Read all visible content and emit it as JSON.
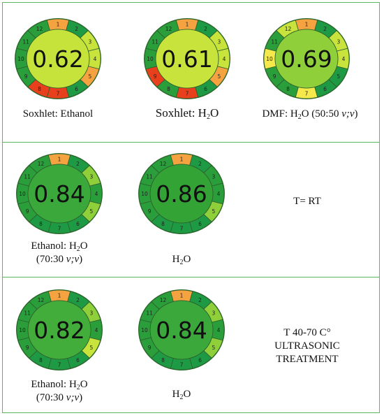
{
  "colors": {
    "frame": "#5cb85c",
    "score_1": "#d73027",
    "score_2": "#f46d43",
    "score_3": "#fdae61",
    "score_4": "#fee08b",
    "score_5": "#d9ef8b",
    "score_6": "#a6d96a",
    "score_7": "#66bd63",
    "score_8": "#1a9850",
    "score_9": "#1e8c3a"
  },
  "panels": [
    {
      "gauges": [
        {
          "score": "0.62",
          "center_color": "#c5e33a",
          "segments": [
            {
              "n": "1",
              "color": "#f4a340"
            },
            {
              "n": "2",
              "color": "#1f9a44"
            },
            {
              "n": "3",
              "color": "#c8e33c"
            },
            {
              "n": "4",
              "color": "#c8e33c"
            },
            {
              "n": "5",
              "color": "#f4a340"
            },
            {
              "n": "6",
              "color": "#1f9a44"
            },
            {
              "n": "7",
              "color": "#e8401c"
            },
            {
              "n": "8",
              "color": "#e8401c"
            },
            {
              "n": "9",
              "color": "#2a9e3a"
            },
            {
              "n": "10",
              "color": "#2a9e3a"
            },
            {
              "n": "11",
              "color": "#2a9e3a"
            },
            {
              "n": "12",
              "color": "#2a9e3a"
            }
          ],
          "caption_main": "Soxhlet: Ethanol",
          "caption_sub": "",
          "caption_tail": "",
          "caption_line2": "",
          "caption_line2_italic": "",
          "caption_line2_tail": ""
        },
        {
          "score": "0.61",
          "center_color": "#c8e33c",
          "segments": [
            {
              "n": "1",
              "color": "#f4a340"
            },
            {
              "n": "2",
              "color": "#1f9a44"
            },
            {
              "n": "3",
              "color": "#c8e33c"
            },
            {
              "n": "4",
              "color": "#c8e33c"
            },
            {
              "n": "5",
              "color": "#f4a340"
            },
            {
              "n": "6",
              "color": "#1f9a44"
            },
            {
              "n": "7",
              "color": "#e8401c"
            },
            {
              "n": "8",
              "color": "#2a9e3a"
            },
            {
              "n": "9",
              "color": "#e8401c"
            },
            {
              "n": "10",
              "color": "#2a9e3a"
            },
            {
              "n": "11",
              "color": "#2a9e3a"
            },
            {
              "n": "12",
              "color": "#2a9e3a"
            }
          ],
          "caption_main": "Soxhlet: H",
          "caption_sub": "2",
          "caption_tail": "O",
          "caption_line2": "",
          "caption_line2_italic": "",
          "caption_line2_tail": ""
        },
        {
          "score": "0.69",
          "center_color": "#8fcf3a",
          "segments": [
            {
              "n": "1",
              "color": "#f4a340"
            },
            {
              "n": "2",
              "color": "#1f9a44"
            },
            {
              "n": "3",
              "color": "#c8e33c"
            },
            {
              "n": "4",
              "color": "#c8e33c"
            },
            {
              "n": "5",
              "color": "#1f9a44"
            },
            {
              "n": "6",
              "color": "#1f9a44"
            },
            {
              "n": "7",
              "color": "#f5e84a"
            },
            {
              "n": "8",
              "color": "#2a9e3a"
            },
            {
              "n": "9",
              "color": "#2a9e3a"
            },
            {
              "n": "10",
              "color": "#f5e84a"
            },
            {
              "n": "11",
              "color": "#2a9e3a"
            },
            {
              "n": "12",
              "color": "#c8e33c"
            }
          ],
          "caption_main": "DMF: H",
          "caption_sub": "2",
          "caption_tail": "O (50:50 ",
          "caption_italic": "v;v",
          "caption_end": ")",
          "caption_line2": "",
          "caption_line2_italic": "",
          "caption_line2_tail": ""
        }
      ],
      "note_lines": []
    },
    {
      "gauges": [
        {
          "score": "0.84",
          "center_color": "#3aa83a",
          "segments": [
            {
              "n": "1",
              "color": "#f4a340"
            },
            {
              "n": "2",
              "color": "#1f9a44"
            },
            {
              "n": "3",
              "color": "#8fcf3a"
            },
            {
              "n": "4",
              "color": "#2a9e3a"
            },
            {
              "n": "5",
              "color": "#8fcf3a"
            },
            {
              "n": "6",
              "color": "#1f9a44"
            },
            {
              "n": "7",
              "color": "#1f9a44"
            },
            {
              "n": "8",
              "color": "#1f9a44"
            },
            {
              "n": "9",
              "color": "#2a9e3a"
            },
            {
              "n": "10",
              "color": "#2a9e3a"
            },
            {
              "n": "11",
              "color": "#2a9e3a"
            },
            {
              "n": "12",
              "color": "#2a9e3a"
            }
          ],
          "caption_main": "Ethanol: H",
          "caption_sub": "2",
          "caption_tail": "O",
          "caption_line2": "(70:30 ",
          "caption_line2_italic": "v;v",
          "caption_line2_tail": ")"
        },
        {
          "score": "0.86",
          "center_color": "#34a336",
          "segments": [
            {
              "n": "1",
              "color": "#f4a340"
            },
            {
              "n": "2",
              "color": "#1f9a44"
            },
            {
              "n": "3",
              "color": "#2a9e3a"
            },
            {
              "n": "4",
              "color": "#2a9e3a"
            },
            {
              "n": "5",
              "color": "#8fcf3a"
            },
            {
              "n": "6",
              "color": "#1f9a44"
            },
            {
              "n": "7",
              "color": "#1f9a44"
            },
            {
              "n": "8",
              "color": "#1f9a44"
            },
            {
              "n": "9",
              "color": "#2a9e3a"
            },
            {
              "n": "10",
              "color": "#2a9e3a"
            },
            {
              "n": "11",
              "color": "#2a9e3a"
            },
            {
              "n": "12",
              "color": "#2a9e3a"
            }
          ],
          "caption_main": "H",
          "caption_sub": "2",
          "caption_tail": "O",
          "caption_line2": "",
          "caption_line2_italic": "",
          "caption_line2_tail": ""
        }
      ],
      "note_lines": [
        "T= RT"
      ]
    },
    {
      "gauges": [
        {
          "score": "0.82",
          "center_color": "#42ad3a",
          "segments": [
            {
              "n": "1",
              "color": "#f4a340"
            },
            {
              "n": "2",
              "color": "#1f9a44"
            },
            {
              "n": "3",
              "color": "#8fcf3a"
            },
            {
              "n": "4",
              "color": "#2a9e3a"
            },
            {
              "n": "5",
              "color": "#c8e33c"
            },
            {
              "n": "6",
              "color": "#1f9a44"
            },
            {
              "n": "7",
              "color": "#1f9a44"
            },
            {
              "n": "8",
              "color": "#1f9a44"
            },
            {
              "n": "9",
              "color": "#2a9e3a"
            },
            {
              "n": "10",
              "color": "#2a9e3a"
            },
            {
              "n": "11",
              "color": "#2a9e3a"
            },
            {
              "n": "12",
              "color": "#2a9e3a"
            }
          ],
          "caption_main": "Ethanol: H",
          "caption_sub": "2",
          "caption_tail": "O",
          "caption_line2": "(70:30 ",
          "caption_line2_italic": "v;v",
          "caption_line2_tail": ")"
        },
        {
          "score": "0.84",
          "center_color": "#3aa83a",
          "segments": [
            {
              "n": "1",
              "color": "#f4a340"
            },
            {
              "n": "2",
              "color": "#1f9a44"
            },
            {
              "n": "3",
              "color": "#8fcf3a"
            },
            {
              "n": "4",
              "color": "#2a9e3a"
            },
            {
              "n": "5",
              "color": "#8fcf3a"
            },
            {
              "n": "6",
              "color": "#1f9a44"
            },
            {
              "n": "7",
              "color": "#1f9a44"
            },
            {
              "n": "8",
              "color": "#1f9a44"
            },
            {
              "n": "9",
              "color": "#2a9e3a"
            },
            {
              "n": "10",
              "color": "#2a9e3a"
            },
            {
              "n": "11",
              "color": "#2a9e3a"
            },
            {
              "n": "12",
              "color": "#2a9e3a"
            }
          ],
          "caption_main": "H",
          "caption_sub": "2",
          "caption_tail": "O",
          "caption_line2": "",
          "caption_line2_italic": "",
          "caption_line2_tail": ""
        }
      ],
      "note_lines": [
        "T 40-70 C°",
        "ULTRASONIC",
        "TREATMENT"
      ]
    }
  ]
}
